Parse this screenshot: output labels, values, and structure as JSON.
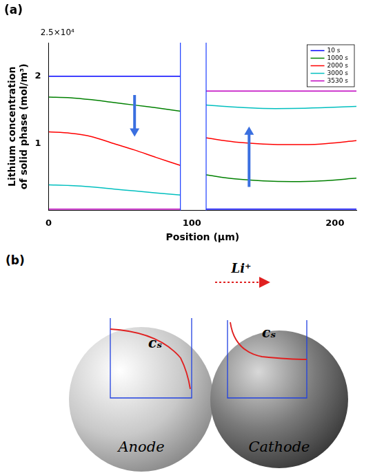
{
  "chart_data": {
    "type": "line",
    "panel_label": "(a)",
    "y_multiplier_label": "2.5×10⁴",
    "y_label": "Lithium concentration of solid phase (mol/m³)",
    "x_label": "Position (µm)",
    "x": [
      0,
      15,
      30,
      45,
      60,
      75,
      92,
      101,
      110,
      130,
      150,
      170,
      190,
      215
    ],
    "separator_boundaries": [
      92,
      110
    ],
    "series": [
      {
        "name": "10 s",
        "color": "#0000ff",
        "values": [
          2.0,
          2.0,
          2.0,
          2.0,
          2.0,
          2.0,
          2.0,
          null,
          0.02,
          0.02,
          0.02,
          0.02,
          0.02,
          0.02
        ]
      },
      {
        "name": "1000 s",
        "color": "#008000",
        "values": [
          1.69,
          1.68,
          1.65,
          1.61,
          1.57,
          1.53,
          1.48,
          null,
          0.53,
          0.47,
          0.44,
          0.43,
          0.44,
          0.48
        ]
      },
      {
        "name": "2000 s",
        "color": "#ff0000",
        "values": [
          1.17,
          1.15,
          1.1,
          1.0,
          0.9,
          0.79,
          0.67,
          null,
          1.08,
          1.02,
          0.99,
          0.98,
          0.99,
          1.04
        ]
      },
      {
        "name": "3000 s",
        "color": "#00bfbf",
        "values": [
          0.38,
          0.37,
          0.35,
          0.32,
          0.29,
          0.26,
          0.23,
          null,
          1.57,
          1.54,
          1.52,
          1.52,
          1.53,
          1.55
        ]
      },
      {
        "name": "3530 s",
        "color": "#bf00bf",
        "values": [
          0.02,
          0.02,
          0.02,
          0.02,
          0.02,
          0.02,
          0.02,
          null,
          1.78,
          1.78,
          1.78,
          1.78,
          1.78,
          1.78
        ]
      }
    ],
    "xlim": [
      0,
      215
    ],
    "xticks": [
      0,
      100,
      200
    ],
    "ylim": [
      0,
      2.5
    ],
    "yticks": [
      1,
      2
    ],
    "grid": false,
    "legend": "upper right"
  },
  "diagram": {
    "panel_label": "(b)",
    "flow_label": "Li⁺",
    "particles": [
      {
        "label": "Anode",
        "curve_label": "cₛ"
      },
      {
        "label": "Cathode",
        "curve_label": "cₛ"
      }
    ]
  }
}
